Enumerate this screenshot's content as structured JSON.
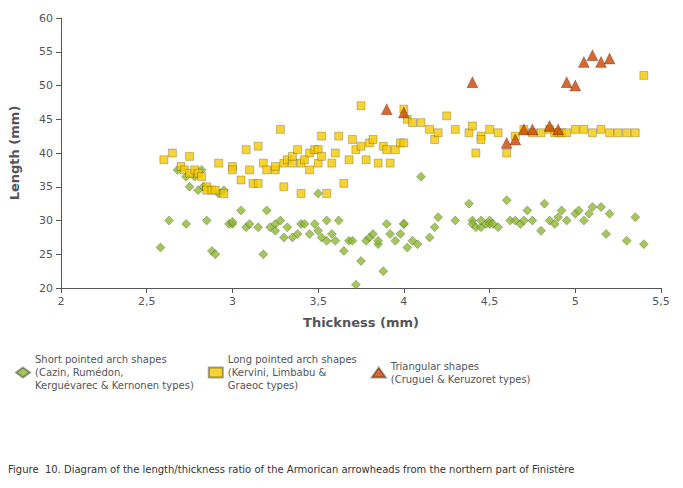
{
  "chart_data": {
    "type": "scatter",
    "xlabel": "Thickness (mm)",
    "ylabel": "Length (mm)",
    "annotations": [
      "Figure  10. Diagram of the length/thickness ratio of the Armorican arrowheads from the northern part of Finistère"
    ],
    "xlim": [
      2,
      5.5
    ],
    "ylim": [
      20,
      60
    ],
    "xticks": [
      2,
      {
        "value": 2.5,
        "label": "2,5"
      },
      3,
      {
        "value": 3.5,
        "label": "3,5"
      },
      4,
      {
        "value": 4.5,
        "label": "4,5"
      },
      5,
      {
        "value": 5.5,
        "label": "5,5"
      }
    ],
    "yticks": [
      20,
      25,
      30,
      35,
      40,
      45,
      50,
      55,
      60
    ],
    "grid": false,
    "legend": "bottom",
    "series": [
      {
        "name": "Short pointed arch shapes\n(Cazin, Rumédon,\nKerguévarec & Kernonen types)",
        "color": "#8DB832",
        "marker": "diamond",
        "x": [
          2.58,
          2.63,
          2.68,
          2.73,
          2.73,
          2.75,
          2.78,
          2.8,
          2.82,
          2.83,
          2.85,
          2.88,
          2.9,
          2.92,
          2.95,
          2.98,
          3.0,
          3.0,
          3.05,
          3.08,
          3.1,
          3.15,
          3.18,
          3.2,
          3.22,
          3.25,
          3.25,
          3.28,
          3.3,
          3.32,
          3.35,
          3.38,
          3.4,
          3.42,
          3.45,
          3.48,
          3.5,
          3.5,
          3.52,
          3.55,
          3.55,
          3.58,
          3.6,
          3.62,
          3.65,
          3.68,
          3.7,
          3.72,
          3.75,
          3.78,
          3.8,
          3.82,
          3.85,
          3.85,
          3.88,
          3.9,
          3.92,
          3.95,
          3.98,
          4.0,
          4.0,
          4.02,
          4.05,
          4.08,
          4.1,
          4.15,
          4.18,
          4.2,
          4.3,
          4.38,
          4.4,
          4.4,
          4.42,
          4.45,
          4.45,
          4.48,
          4.5,
          4.5,
          4.52,
          4.55,
          4.6,
          4.62,
          4.65,
          4.68,
          4.7,
          4.72,
          4.75,
          4.8,
          4.82,
          4.85,
          4.88,
          4.9,
          4.92,
          4.95,
          5.0,
          5.02,
          5.05,
          5.08,
          5.1,
          5.15,
          5.18,
          5.2,
          5.3,
          5.35,
          5.4
        ],
        "values": [
          26.0,
          30.0,
          37.5,
          36.5,
          29.5,
          35.0,
          36.5,
          34.5,
          37.5,
          35.0,
          30.0,
          25.5,
          25.0,
          34.0,
          34.5,
          29.5,
          29.5,
          29.8,
          31.5,
          29.0,
          29.5,
          29.0,
          25.0,
          31.5,
          29.0,
          29.5,
          28.5,
          30.0,
          27.5,
          29.0,
          27.5,
          28.0,
          29.5,
          29.5,
          28.0,
          29.5,
          28.5,
          34.0,
          27.5,
          30.0,
          27.0,
          28.0,
          27.0,
          30.0,
          25.5,
          27.0,
          27.0,
          20.5,
          24.0,
          27.0,
          27.5,
          28.0,
          26.5,
          27.0,
          22.5,
          29.5,
          28.0,
          27.0,
          28.0,
          29.5,
          29.5,
          26.0,
          27.0,
          26.5,
          36.5,
          27.5,
          29.0,
          30.5,
          30.0,
          32.5,
          30.0,
          29.5,
          29.0,
          29.0,
          30.0,
          29.5,
          30.0,
          29.5,
          29.5,
          29.0,
          33.0,
          30.0,
          30.0,
          29.5,
          30.0,
          31.5,
          30.0,
          28.5,
          32.5,
          30.0,
          29.5,
          30.5,
          31.5,
          30.0,
          31.0,
          31.5,
          30.0,
          31.0,
          32.0,
          32.0,
          28.0,
          31.0,
          27.0,
          30.5,
          26.5
        ]
      },
      {
        "name": "Long pointed arch shapes\n(Kervini, Limbabu &\nGraeoc types)",
        "color": "#F5C800",
        "marker": "square",
        "x": [
          2.6,
          2.65,
          2.7,
          2.72,
          2.75,
          2.75,
          2.78,
          2.8,
          2.82,
          2.85,
          2.85,
          2.88,
          2.9,
          2.92,
          2.95,
          3.0,
          3.0,
          3.05,
          3.08,
          3.1,
          3.12,
          3.15,
          3.15,
          3.18,
          3.2,
          3.25,
          3.25,
          3.28,
          3.3,
          3.3,
          3.32,
          3.35,
          3.35,
          3.38,
          3.4,
          3.4,
          3.42,
          3.45,
          3.45,
          3.48,
          3.5,
          3.5,
          3.52,
          3.52,
          3.55,
          3.58,
          3.6,
          3.62,
          3.65,
          3.68,
          3.7,
          3.72,
          3.75,
          3.75,
          3.78,
          3.8,
          3.82,
          3.85,
          3.88,
          3.9,
          3.92,
          3.95,
          3.98,
          4.0,
          4.0,
          4.02,
          4.05,
          4.1,
          4.15,
          4.18,
          4.2,
          4.25,
          4.3,
          4.38,
          4.4,
          4.42,
          4.45,
          4.45,
          4.5,
          4.55,
          4.6,
          4.65,
          4.7,
          4.75,
          4.8,
          4.85,
          4.88,
          4.9,
          4.92,
          4.95,
          5.0,
          5.05,
          5.1,
          5.15,
          5.2,
          5.25,
          5.3,
          5.35,
          5.4
        ],
        "values": [
          39.0,
          40.0,
          38.0,
          37.5,
          39.5,
          37.0,
          37.5,
          37.0,
          36.5,
          35.0,
          34.5,
          34.5,
          34.5,
          38.5,
          34.0,
          38.0,
          37.5,
          36.0,
          40.5,
          37.5,
          35.5,
          41.0,
          35.5,
          38.5,
          37.5,
          37.5,
          38.0,
          43.5,
          35.0,
          38.5,
          39.0,
          38.5,
          39.5,
          40.5,
          38.5,
          34.0,
          39.0,
          40.0,
          37.5,
          40.5,
          40.5,
          38.5,
          42.5,
          39.5,
          34.0,
          38.5,
          40.0,
          42.5,
          35.5,
          39.0,
          42.0,
          40.5,
          47.0,
          41.0,
          39.0,
          41.5,
          42.0,
          38.5,
          41.0,
          40.5,
          38.5,
          40.5,
          41.5,
          41.5,
          46.5,
          45.0,
          44.5,
          44.5,
          43.5,
          42.0,
          43.0,
          45.5,
          43.5,
          43.0,
          44.0,
          40.0,
          42.5,
          42.0,
          43.5,
          43.0,
          40.0,
          42.5,
          43.5,
          43.0,
          43.0,
          43.5,
          43.0,
          43.0,
          43.0,
          43.0,
          43.5,
          43.5,
          43.0,
          43.5,
          43.0,
          43.0,
          43.0,
          43.0,
          51.5
        ]
      },
      {
        "name": "Triangular shapes\n(Cruguel & Keruzoret types)",
        "color": "#CC4400",
        "marker": "triangle",
        "x": [
          3.9,
          4.0,
          4.4,
          4.6,
          4.65,
          4.7,
          4.75,
          4.85,
          4.9,
          4.95,
          5.0,
          5.05,
          5.1,
          5.15,
          5.2
        ],
        "values": [
          46.5,
          46.0,
          50.5,
          41.5,
          42.0,
          43.5,
          43.5,
          44.0,
          43.5,
          50.5,
          50.0,
          53.5,
          54.5,
          53.5,
          54.0
        ]
      }
    ]
  }
}
